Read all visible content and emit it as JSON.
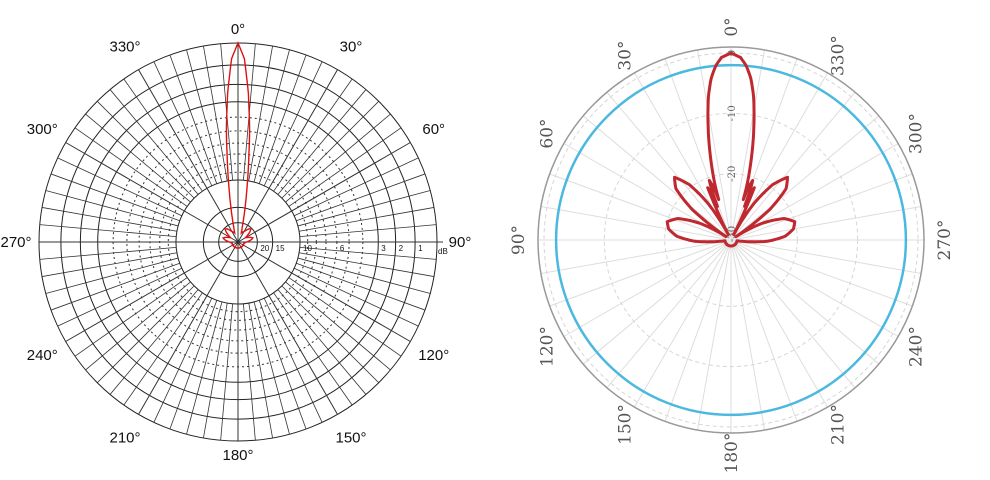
{
  "chart_data": [
    {
      "type": "polar",
      "zero_direction": "top",
      "angle_direction": "clockwise",
      "radial_scale": "log",
      "radial_unit": "dB",
      "angle_tick_labels": [
        "0°",
        "30°",
        "60°",
        "90°",
        "120°",
        "150°",
        "180°",
        "210°",
        "240°",
        "270°",
        "300°",
        "330°"
      ],
      "radial_tick_labels": [
        "20",
        "15",
        "10",
        "6",
        "3",
        "2",
        "1"
      ],
      "radial_tick_values": [
        -20,
        -15,
        -10,
        -6,
        -3,
        -2,
        -1
      ],
      "rlim": [
        -30,
        0
      ],
      "grid": true,
      "symmetric": true,
      "series": [
        {
          "color": "#e01010",
          "angles": [
            0,
            2,
            4,
            6,
            8,
            10,
            12,
            14,
            16,
            20,
            30,
            40,
            45,
            50,
            60,
            70,
            75,
            80,
            90,
            100,
            180
          ],
          "values": [
            0,
            -0.7,
            -2.5,
            -5,
            -8.5,
            -12,
            -15.5,
            -19,
            -22,
            -26,
            -24,
            -21,
            -20.5,
            -22,
            -27,
            -23,
            -22,
            -23,
            -27,
            -30,
            -30
          ]
        }
      ]
    },
    {
      "type": "polar",
      "zero_direction": "top",
      "angle_direction": "counterclockwise",
      "radial_scale": "linear",
      "radial_unit": "dB",
      "angle_tick_labels": [
        "0°",
        "30°",
        "60°",
        "90°",
        "120°",
        "150°",
        "180°",
        "210°",
        "240°",
        "270°",
        "300°",
        "330°"
      ],
      "radial_tick_labels": [
        "0",
        "-10",
        "-20",
        "-30"
      ],
      "radial_tick_values": [
        0,
        -10,
        -20,
        -30
      ],
      "rlim": [
        -31,
        1
      ],
      "grid": true,
      "symmetric": true,
      "reference_circle": {
        "value": -2,
        "color": "#4bb8e0"
      },
      "series": [
        {
          "color": "#c0282f",
          "angles": [
            0,
            3,
            5,
            7,
            9,
            10,
            12,
            14,
            16,
            17,
            18,
            20,
            21,
            22,
            23,
            24,
            25,
            27,
            32,
            37,
            42,
            47,
            52,
            56,
            62,
            68,
            74,
            80,
            86,
            92,
            98,
            180
          ],
          "values": [
            0,
            -0.7,
            -2,
            -4,
            -7,
            -9,
            -13,
            -17,
            -21,
            -24,
            -22,
            -20.5,
            -22,
            -25,
            -23,
            -21.5,
            -25,
            -30,
            -24,
            -19.5,
            -17,
            -18.5,
            -23,
            -30,
            -25,
            -21.5,
            -20,
            -20.5,
            -22,
            -25,
            -30,
            -30
          ]
        }
      ]
    }
  ],
  "left_unit_label": "dB"
}
